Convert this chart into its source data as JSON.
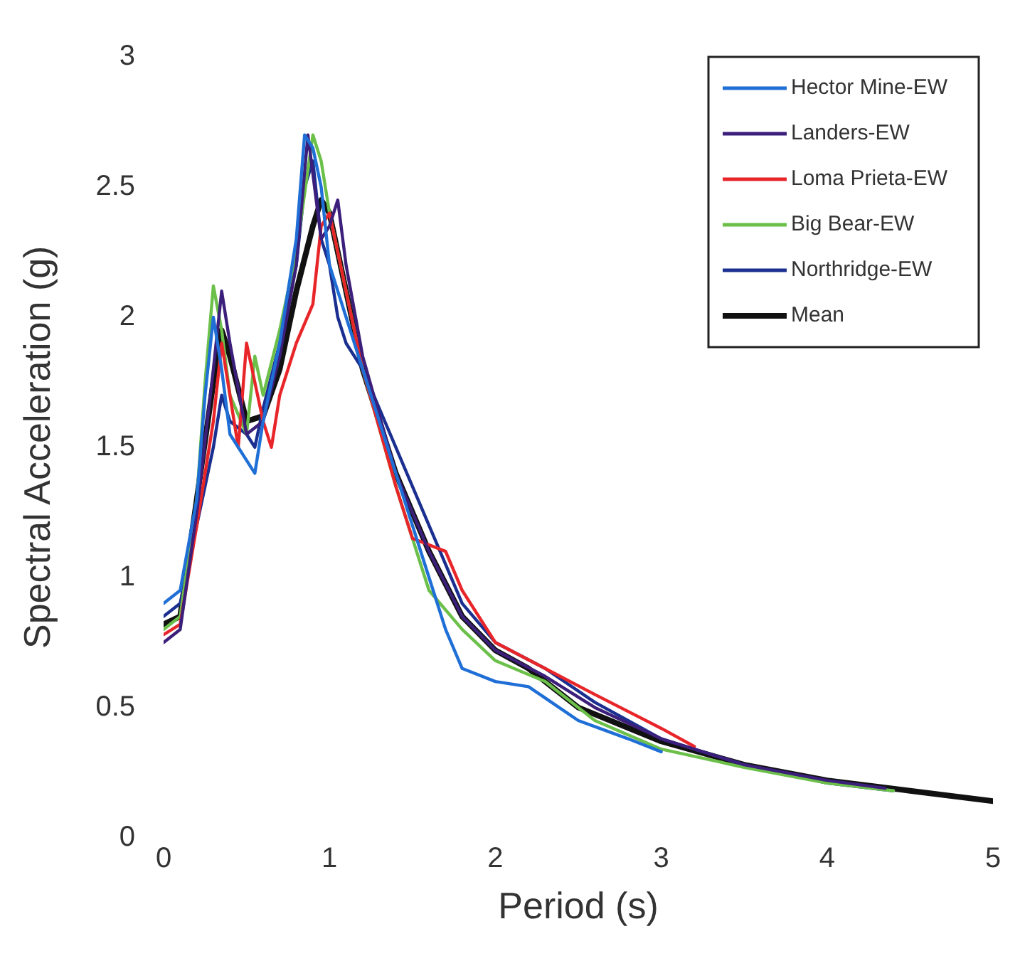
{
  "chart_data": {
    "type": "line",
    "xlabel": "Period (s)",
    "ylabel": "Spectral Acceleration (g)",
    "xlim": [
      0,
      5
    ],
    "xticks": [
      0,
      1,
      2,
      3,
      4,
      5
    ],
    "ylim": [
      0,
      3
    ],
    "yticks": [
      0,
      0.5,
      1,
      1.5,
      2,
      2.5,
      3
    ],
    "grid": false,
    "legend": "top right",
    "marker": "none",
    "line_style": "solid",
    "series": [
      {
        "name": "Hector Mine-EW",
        "color": "#1f6fd6",
        "x": [
          0,
          0.1,
          0.2,
          0.25,
          0.3,
          0.35,
          0.4,
          0.5,
          0.55,
          0.6,
          0.7,
          0.8,
          0.85,
          0.9,
          0.95,
          1.0,
          1.1,
          1.2,
          1.4,
          1.6,
          1.7,
          1.8,
          2.0,
          2.2,
          2.5,
          2.8,
          3.0
        ],
        "values": [
          0.9,
          0.95,
          1.3,
          1.7,
          2.0,
          1.8,
          1.55,
          1.45,
          1.4,
          1.6,
          1.9,
          2.3,
          2.7,
          2.65,
          2.5,
          2.2,
          2.0,
          1.8,
          1.4,
          1.0,
          0.8,
          0.65,
          0.6,
          0.58,
          0.45,
          0.38,
          0.33
        ]
      },
      {
        "name": "Landers-EW",
        "color": "#3b1f7a",
        "x": [
          0,
          0.1,
          0.2,
          0.3,
          0.35,
          0.4,
          0.5,
          0.6,
          0.7,
          0.8,
          0.87,
          0.95,
          1.0,
          1.05,
          1.1,
          1.2,
          1.4,
          1.6,
          1.8,
          2.0,
          2.3,
          2.6,
          3.0,
          3.5,
          4.0,
          4.35
        ],
        "values": [
          0.75,
          0.8,
          1.25,
          1.8,
          2.1,
          1.9,
          1.55,
          1.6,
          1.85,
          2.2,
          2.7,
          2.3,
          2.35,
          2.45,
          2.2,
          1.85,
          1.4,
          1.1,
          0.85,
          0.72,
          0.62,
          0.5,
          0.38,
          0.28,
          0.22,
          0.19
        ]
      },
      {
        "name": "Loma Prieta-EW",
        "color": "#e8262a",
        "x": [
          0,
          0.1,
          0.2,
          0.3,
          0.35,
          0.4,
          0.45,
          0.5,
          0.55,
          0.6,
          0.65,
          0.7,
          0.8,
          0.9,
          0.95,
          1.0,
          1.1,
          1.2,
          1.4,
          1.5,
          1.7,
          1.8,
          2.0,
          2.3,
          2.6,
          3.0,
          3.2
        ],
        "values": [
          0.78,
          0.82,
          1.2,
          1.6,
          1.9,
          1.7,
          1.5,
          1.9,
          1.75,
          1.6,
          1.5,
          1.7,
          1.9,
          2.05,
          2.35,
          2.4,
          2.1,
          1.8,
          1.35,
          1.15,
          1.1,
          0.95,
          0.75,
          0.65,
          0.55,
          0.42,
          0.35
        ]
      },
      {
        "name": "Big Bear-EW",
        "color": "#6cc04a",
        "x": [
          0,
          0.1,
          0.2,
          0.25,
          0.3,
          0.35,
          0.4,
          0.5,
          0.55,
          0.6,
          0.7,
          0.8,
          0.9,
          0.95,
          1.0,
          1.1,
          1.2,
          1.4,
          1.6,
          1.8,
          2.0,
          2.3,
          2.6,
          3.0,
          3.5,
          4.0,
          4.4
        ],
        "values": [
          0.8,
          0.85,
          1.3,
          1.75,
          2.12,
          1.95,
          1.7,
          1.55,
          1.85,
          1.7,
          1.95,
          2.25,
          2.7,
          2.6,
          2.4,
          2.1,
          1.8,
          1.35,
          0.95,
          0.8,
          0.68,
          0.6,
          0.45,
          0.34,
          0.27,
          0.21,
          0.18
        ]
      },
      {
        "name": "Northridge-EW",
        "color": "#1a2f8f",
        "x": [
          0,
          0.1,
          0.2,
          0.3,
          0.35,
          0.4,
          0.5,
          0.55,
          0.6,
          0.7,
          0.8,
          0.85,
          0.9,
          0.95,
          1.0,
          1.05,
          1.1,
          1.2,
          1.4,
          1.6,
          1.8,
          2.0,
          2.3,
          2.6,
          3.0,
          3.5,
          4.0,
          4.4
        ],
        "values": [
          0.85,
          0.9,
          1.2,
          1.5,
          1.7,
          1.6,
          1.55,
          1.5,
          1.65,
          1.9,
          2.2,
          2.5,
          2.6,
          2.3,
          2.2,
          2.0,
          1.9,
          1.8,
          1.5,
          1.2,
          0.9,
          0.75,
          0.65,
          0.52,
          0.38,
          0.28,
          0.21,
          0.18
        ]
      },
      {
        "name": "Mean",
        "color": "#111111",
        "x": [
          0,
          0.1,
          0.2,
          0.3,
          0.35,
          0.4,
          0.5,
          0.6,
          0.7,
          0.8,
          0.9,
          0.95,
          1.0,
          1.1,
          1.2,
          1.4,
          1.6,
          1.8,
          2.0,
          2.2,
          2.5,
          3.0,
          3.5,
          4.0,
          4.5,
          5.0
        ],
        "values": [
          0.82,
          0.85,
          1.3,
          1.75,
          1.95,
          1.85,
          1.6,
          1.62,
          1.8,
          2.1,
          2.35,
          2.45,
          2.4,
          2.1,
          1.8,
          1.4,
          1.1,
          0.85,
          0.72,
          0.65,
          0.5,
          0.37,
          0.28,
          0.22,
          0.18,
          0.14
        ]
      }
    ]
  }
}
